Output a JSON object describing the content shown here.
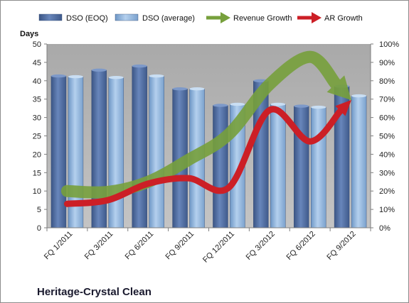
{
  "chart_data": {
    "type": "bar",
    "title": "Heritage-Crystal Clean",
    "ylabel": "Days",
    "ylim": [
      0,
      50
    ],
    "yticks": [
      "0",
      "5",
      "10",
      "15",
      "20",
      "25",
      "30",
      "35",
      "40",
      "45",
      "50"
    ],
    "y2lim": [
      0,
      100
    ],
    "y2ticks": [
      "0%",
      "10%",
      "20%",
      "30%",
      "40%",
      "50%",
      "60%",
      "70%",
      "80%",
      "90%",
      "100%"
    ],
    "categories": [
      "FQ 1/2011",
      "FQ 3/2011",
      "FQ 6/2011",
      "FQ 9/2011",
      "FQ 12/2011",
      "FQ 3/2012",
      "FQ 6/2012",
      "FQ 9/2012"
    ],
    "series": [
      {
        "name": "DSO (EOQ)",
        "kind": "bar",
        "axis": "left",
        "color": "#4f6b9c",
        "values": [
          41.3,
          42.9,
          44.0,
          37.8,
          33.3,
          40.0,
          33.1,
          38.5
        ]
      },
      {
        "name": "DSO (average)",
        "kind": "bar",
        "axis": "left",
        "color": "#8eb4dd",
        "values": [
          41.1,
          40.9,
          41.3,
          37.8,
          33.6,
          33.6,
          32.8,
          35.9
        ]
      },
      {
        "name": "Revenue Growth",
        "kind": "arrow",
        "axis": "right",
        "color": "#77a03c",
        "values": [
          20,
          19.5,
          25,
          37,
          51,
          78,
          93,
          70
        ]
      },
      {
        "name": "AR Growth",
        "kind": "arrow",
        "axis": "right",
        "color": "#cc1f26",
        "values": [
          13,
          15,
          24,
          27,
          22,
          64,
          47,
          69
        ]
      }
    ],
    "legend_position": "top",
    "grid": false
  }
}
